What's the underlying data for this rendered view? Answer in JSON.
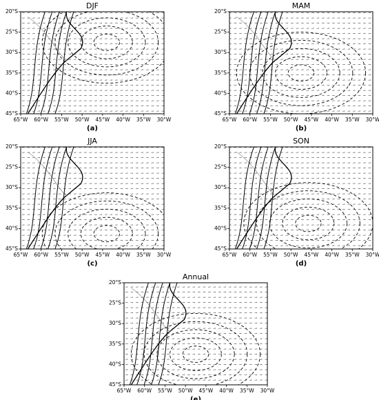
{
  "panels": [
    {
      "title": "DJF",
      "label": "(a)"
    },
    {
      "title": "MAM",
      "label": "(b)"
    },
    {
      "title": "JJA",
      "label": "(c)"
    },
    {
      "title": "SON",
      "label": "(d)"
    },
    {
      "title": "Annual",
      "label": "(e)"
    }
  ],
  "x_ticks": [
    "65°W",
    "60°W",
    "55°W",
    "50°W",
    "45°W",
    "40°W",
    "35°W",
    "30°W"
  ],
  "y_ticks": [
    "20°S",
    "25°S",
    "30°S",
    "35°S",
    "40°S",
    "45°S"
  ]
}
